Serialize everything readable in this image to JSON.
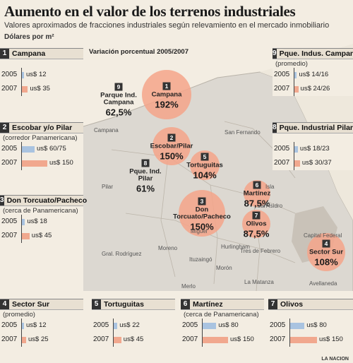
{
  "header": {
    "title": "Aumento en el valor de los terrenos industriales",
    "subtitle": "Valores aproximados de fracciones industriales según relevamiento en el mercado inmobiliario",
    "units": "Dólares por m²",
    "source": "LA NACION"
  },
  "colors": {
    "bar_2005": "#a9c3e0",
    "bar_2007": "#f1a88e",
    "circle": "#f4a58a",
    "map_land": "#d9d5cf"
  },
  "map": {
    "variation_title": "Variación porcentual 2005/2007",
    "places": [
      "Campana",
      "Pilar",
      "San Fernando",
      "Isla",
      "Moreno",
      "Hurlingham",
      "Ituzaingó",
      "Morón",
      "Tres de Febrero",
      "Capital Federal",
      "Gral. Rodríguez",
      "Merlo",
      "La Matanza",
      "Avellaneda",
      "Miguel",
      "San Isidro"
    ]
  },
  "chart_data": {
    "type": "bar",
    "units": "us$/m²",
    "years": [
      "2005",
      "2007"
    ],
    "zones": [
      {
        "id": "1",
        "name": "Campana",
        "note": "",
        "v2005": "us$ 12",
        "v2007": "us$ 35",
        "b2005": 12,
        "b2007": 35,
        "variation": "192%"
      },
      {
        "id": "2",
        "name": "Escobar y/o Pilar",
        "note": "(corredor Panamericana)",
        "map_name": "Escobar/Pilar",
        "v2005": "us$ 60/75",
        "v2007": "us$ 150",
        "b2005": 75,
        "b2007": 150,
        "variation": "150%"
      },
      {
        "id": "3",
        "name": "Don Torcuato/Pacheco",
        "note": "(cerca de Panamericana)",
        "v2005": "us$ 18",
        "v2007": "us$ 45",
        "b2005": 18,
        "b2007": 45,
        "variation": "150%"
      },
      {
        "id": "4",
        "name": "Sector Sur",
        "note": "(promedio)",
        "v2005": "us$ 12",
        "v2007": "us$ 25",
        "b2005": 12,
        "b2007": 25,
        "variation": "108%"
      },
      {
        "id": "5",
        "name": "Tortuguitas",
        "note": "",
        "v2005": "us$ 22",
        "v2007": "us$ 45",
        "b2005": 22,
        "b2007": 45,
        "variation": "104%"
      },
      {
        "id": "6",
        "name": "Martínez",
        "note": "(cerca de Panamericana)",
        "v2005": "us$ 80",
        "v2007": "us$ 150",
        "b2005": 80,
        "b2007": 150,
        "variation": "87,5%"
      },
      {
        "id": "7",
        "name": "Olivos",
        "note": "",
        "v2005": "us$ 80",
        "v2007": "us$ 150",
        "b2005": 80,
        "b2007": 150,
        "variation": "87,5%"
      },
      {
        "id": "8",
        "name": "Pque. Industrial Pilar",
        "note": "",
        "map_name": "Pque. Ind. Pilar",
        "v2005": "us$ 18/23",
        "v2007": "us$ 30/37",
        "b2005": 23,
        "b2007": 37,
        "variation": "61%"
      },
      {
        "id": "9",
        "name": "Pque. Indus. Campana",
        "note": "(promedio)",
        "map_name": "Parque Ind. Campana",
        "v2005": "us$ 14/16",
        "v2007": "us$ 24/26",
        "b2005": 16,
        "b2007": 26,
        "variation": "62,5%"
      }
    ]
  }
}
